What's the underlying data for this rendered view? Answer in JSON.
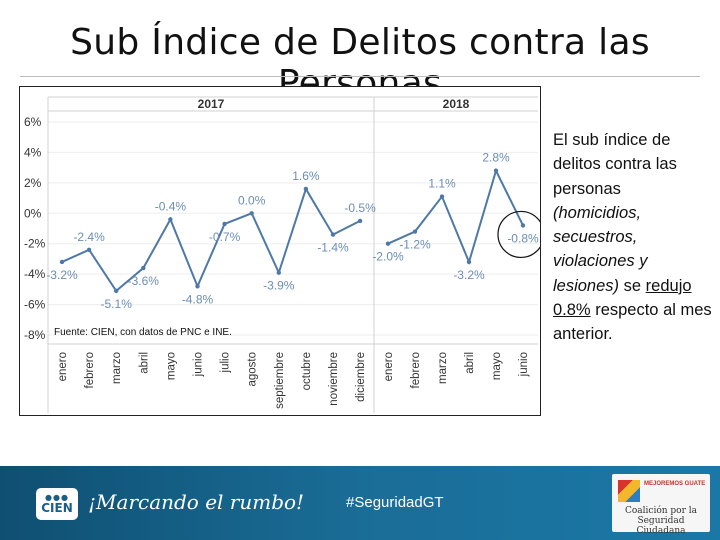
{
  "title": "Sub Índice de Delitos contra las Personas",
  "chart_data": {
    "type": "line",
    "panels": [
      {
        "year": "2017",
        "categories": [
          "enero",
          "febrero",
          "marzo",
          "abril",
          "mayo",
          "junio",
          "julio",
          "agosto",
          "septiembre",
          "octubre",
          "noviembre",
          "diciembre"
        ],
        "values": [
          -3.2,
          -2.4,
          -5.1,
          -3.6,
          -0.4,
          -4.8,
          -0.7,
          0.0,
          -3.9,
          1.6,
          -1.4,
          -0.5
        ],
        "labels": [
          "-3.2%",
          "-2.4%",
          "-5.1%",
          "-3.6%",
          "-0.4%",
          "-4.8%",
          "-0.7%",
          "0.0%",
          "-3.9%",
          "1.6%",
          "-1.4%",
          "-0.5%"
        ]
      },
      {
        "year": "2018",
        "categories": [
          "enero",
          "febrero",
          "marzo",
          "abril",
          "mayo",
          "junio"
        ],
        "values": [
          -2.0,
          -1.2,
          1.1,
          -3.2,
          2.8,
          -0.8
        ],
        "labels": [
          "-2.0%",
          "-1.2%",
          "1.1%",
          "-3.2%",
          "2.8%",
          "-0.8%"
        ]
      }
    ],
    "yticks": [
      "6%",
      "4%",
      "2%",
      "0%",
      "-2%",
      "-4%",
      "-6%",
      "-8%"
    ],
    "ytick_values": [
      6,
      4,
      2,
      0,
      -2,
      -4,
      -6,
      -8
    ],
    "ylim": [
      -8,
      6
    ],
    "line_color": "#4e79a7",
    "label_color": "#6b8db5",
    "highlight": "2018 junio",
    "source": "Fuente: CIEN, con datos de PNC e INE."
  },
  "side_text": {
    "line1": "El sub índice de delitos contra las personas",
    "italic": "(homicidios, secuestros, violaciones y lesiones)",
    "mid": "se",
    "underline": "redujo 0.8%",
    "end": "respecto al mes anterior."
  },
  "footer": {
    "logo_text": "CIEN",
    "slogan": "¡Marcando el rumbo!",
    "hashtag": "#SeguridadGT",
    "partner_small": "MEJOREMOS GUATE",
    "partner_name": "Coalición por la Seguridad Ciudadana",
    "background": "#1a6d97"
  }
}
